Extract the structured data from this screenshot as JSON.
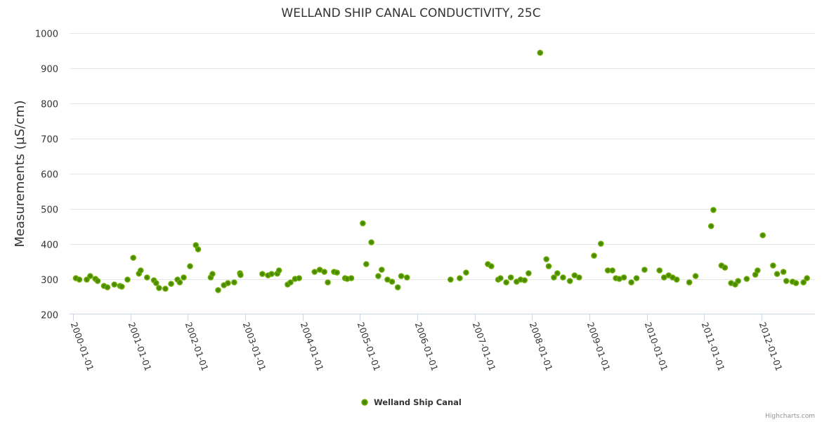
{
  "chart_data": {
    "type": "scatter",
    "title": "WELLAND SHIP CANAL CONDUCTIVITY, 25C",
    "xlabel": "",
    "ylabel": "Measurements (µS/cm)",
    "xlim": [
      1999.94,
      2012.93
    ],
    "ylim": [
      200,
      1000
    ],
    "yticks": [
      "200",
      "300",
      "400",
      "500",
      "600",
      "700",
      "800",
      "900",
      "1000"
    ],
    "ytick_values": [
      200,
      300,
      400,
      500,
      600,
      700,
      800,
      900,
      1000
    ],
    "xticks": [
      "2000-01-01",
      "2001-01-01",
      "2002-01-01",
      "2003-01-01",
      "2004-01-01",
      "2005-01-01",
      "2006-01-01",
      "2007-01-01",
      "2008-01-01",
      "2009-01-01",
      "2010-01-01",
      "2011-01-01",
      "2012-01-01"
    ],
    "xtick_values": [
      2000,
      2001,
      2002,
      2003,
      2004,
      2005,
      2006,
      2007,
      2008,
      2009,
      2010,
      2011,
      2012
    ],
    "grid": true,
    "legend_position": "bottom-center",
    "x_unit": "decimal year",
    "series": [
      {
        "name": "Welland Ship Canal",
        "color": "#6aaa00",
        "fill_color": "#4a8a00",
        "x": [
          2000.05,
          2000.11,
          2000.24,
          2000.3,
          2000.39,
          2000.43,
          2000.54,
          2000.6,
          2000.72,
          2000.82,
          2000.85,
          2000.95,
          2001.05,
          2001.15,
          2001.18,
          2001.29,
          2001.41,
          2001.45,
          2001.5,
          2001.61,
          2001.71,
          2001.82,
          2001.86,
          2001.93,
          2002.04,
          2002.14,
          2002.18,
          2002.4,
          2002.43,
          2002.53,
          2002.63,
          2002.7,
          2002.81,
          2002.91,
          2002.92,
          2003.3,
          2003.4,
          2003.46,
          2003.56,
          2003.59,
          2003.74,
          2003.79,
          2003.87,
          2003.94,
          2004.21,
          2004.3,
          2004.38,
          2004.44,
          2004.55,
          2004.6,
          2004.74,
          2004.78,
          2004.85,
          2005.05,
          2005.11,
          2005.2,
          2005.32,
          2005.38,
          2005.48,
          2005.56,
          2005.66,
          2005.72,
          2005.82,
          2006.58,
          2006.74,
          2006.85,
          2007.23,
          2007.29,
          2007.41,
          2007.45,
          2007.55,
          2007.63,
          2007.73,
          2007.8,
          2007.87,
          2007.94,
          2008.14,
          2008.25,
          2008.29,
          2008.38,
          2008.44,
          2008.54,
          2008.66,
          2008.74,
          2008.82,
          2009.08,
          2009.2,
          2009.32,
          2009.4,
          2009.46,
          2009.52,
          2009.6,
          2009.73,
          2009.82,
          2009.96,
          2010.22,
          2010.3,
          2010.38,
          2010.45,
          2010.52,
          2010.74,
          2010.85,
          2011.12,
          2011.16,
          2011.3,
          2011.36,
          2011.47,
          2011.54,
          2011.59,
          2011.74,
          2011.89,
          2011.93,
          2012.02,
          2012.2,
          2012.27,
          2012.38,
          2012.43,
          2012.54,
          2012.6,
          2012.73,
          2012.79
        ],
        "values": [
          303,
          299,
          299,
          309,
          301,
          295,
          281,
          277,
          285,
          281,
          279,
          299,
          361,
          316,
          325,
          305,
          297,
          289,
          275,
          273,
          287,
          299,
          291,
          305,
          337,
          397,
          385,
          305,
          315,
          269,
          283,
          289,
          291,
          317,
          312,
          315,
          311,
          315,
          316,
          325,
          285,
          291,
          301,
          303,
          321,
          327,
          321,
          291,
          321,
          319,
          303,
          301,
          303,
          459,
          343,
          405,
          309,
          327,
          299,
          293,
          277,
          309,
          305,
          299,
          303,
          319,
          343,
          337,
          299,
          303,
          291,
          305,
          293,
          299,
          297,
          317,
          944,
          357,
          337,
          305,
          317,
          305,
          295,
          311,
          305,
          367,
          401,
          325,
          325,
          303,
          301,
          305,
          291,
          303,
          327,
          325,
          305,
          311,
          305,
          299,
          291,
          309,
          451,
          497,
          339,
          333,
          289,
          285,
          295,
          301,
          313,
          325,
          425,
          339,
          315,
          321,
          295,
          293,
          289,
          291,
          303
        ]
      }
    ]
  },
  "legend": {
    "items": [
      {
        "label": "Welland Ship Canal"
      }
    ]
  },
  "credits": {
    "text": "Highcharts.com"
  }
}
